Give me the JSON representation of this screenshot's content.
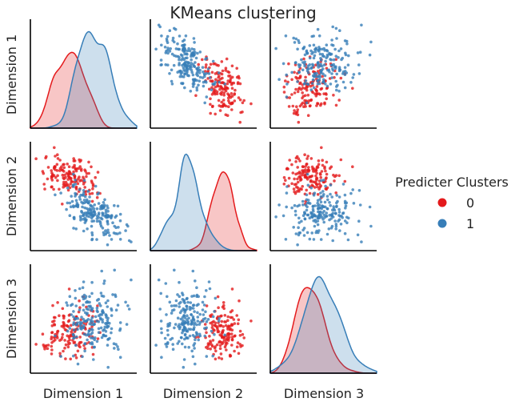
{
  "chart_data": {
    "type": "scatter",
    "title": "KMeans clustering",
    "variables": [
      "Dimension 1",
      "Dimension 2",
      "Dimension 3"
    ],
    "legend": {
      "title": "Predicter Clusters",
      "placement": "right",
      "entries": [
        {
          "label": "0",
          "color": "#e41a1c"
        },
        {
          "label": "1",
          "color": "#377eb8"
        }
      ]
    },
    "axis_ticks_shown": false,
    "grid": false,
    "diagonal_kind": "kde",
    "offdiagonal_kind": "scatter",
    "clusters": [
      {
        "name": "0",
        "color": "#e41a1c",
        "n_points": 150,
        "means": [
          0.46,
          0.69,
          0.46
        ],
        "stds": [
          0.11,
          0.11,
          0.15
        ],
        "corr_12": -0.35,
        "corr_13": 0.3,
        "corr_23": 0.0
      },
      {
        "name": "1",
        "color": "#377eb8",
        "n_points": 200,
        "means": [
          0.63,
          0.3,
          0.56
        ],
        "stds": [
          0.12,
          0.14,
          0.17
        ],
        "corr_12": -0.55,
        "corr_13": 0.0,
        "corr_23": 0.0
      }
    ]
  }
}
